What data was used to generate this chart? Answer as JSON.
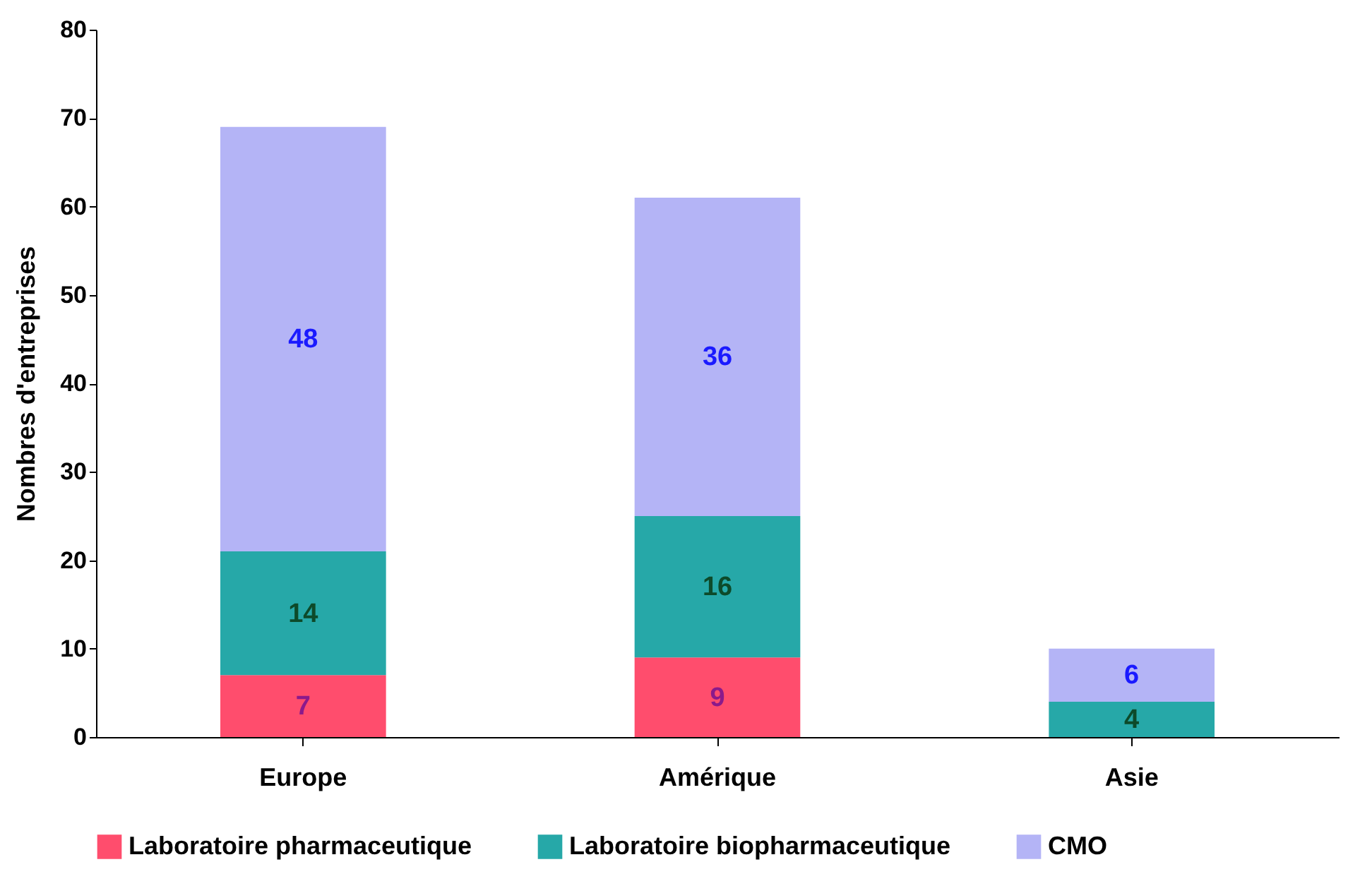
{
  "chart_data": {
    "type": "bar",
    "stacked": true,
    "ylabel": "Nombres d'entreprises",
    "categories": [
      "Europe",
      "Amérique",
      "Asie"
    ],
    "series": [
      {
        "name": "Laboratoire pharmaceutique",
        "color": "#ff4d6d",
        "values": [
          7,
          9,
          null
        ]
      },
      {
        "name": "Laboratoire biopharmaceutique",
        "color": "#26a8a8",
        "values": [
          14,
          16,
          4
        ]
      },
      {
        "name": "CMO",
        "color": "#b4b4f6",
        "values": [
          48,
          36,
          6
        ]
      }
    ],
    "ylim": [
      0,
      80
    ],
    "yticks": [
      0,
      10,
      20,
      30,
      40,
      50,
      60,
      70,
      80
    ],
    "data_labels": true,
    "legend": "bottom",
    "grid": false
  }
}
